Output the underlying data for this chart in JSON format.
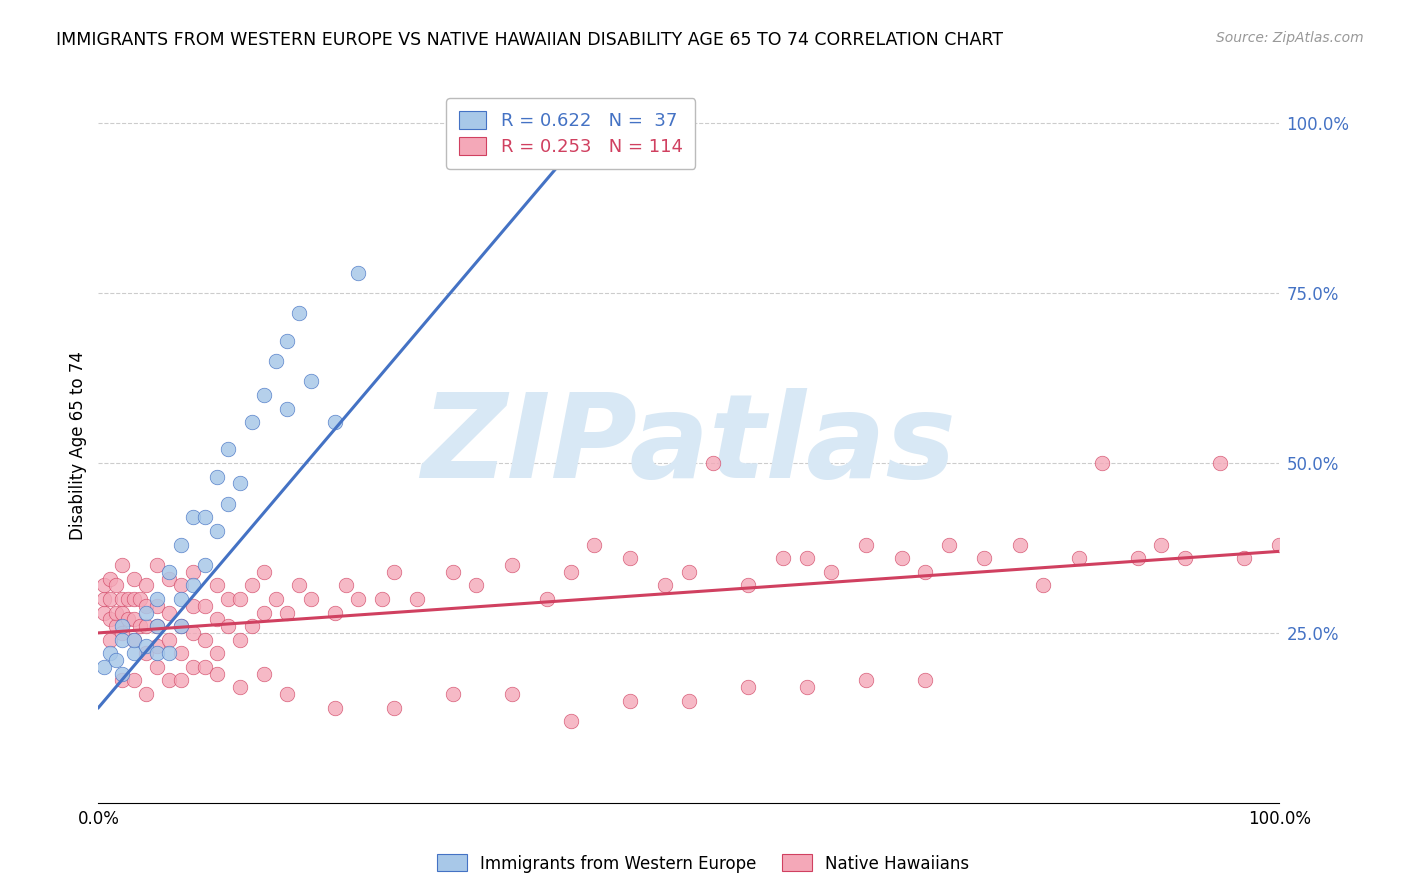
{
  "title": "IMMIGRANTS FROM WESTERN EUROPE VS NATIVE HAWAIIAN DISABILITY AGE 65 TO 74 CORRELATION CHART",
  "source": "Source: ZipAtlas.com",
  "ylabel": "Disability Age 65 to 74",
  "xlim": [
    0.0,
    1.0
  ],
  "ylim": [
    0.0,
    1.05
  ],
  "ytick_positions": [
    0.25,
    0.5,
    0.75,
    1.0
  ],
  "right_ytick_labels": [
    "25.0%",
    "50.0%",
    "75.0%",
    "100.0%"
  ],
  "blue_R": 0.622,
  "blue_N": 37,
  "pink_R": 0.253,
  "pink_N": 114,
  "blue_color": "#a8c8e8",
  "pink_color": "#f4a8b8",
  "blue_line_color": "#4472c4",
  "pink_line_color": "#d04060",
  "legend_blue_color": "#4472c4",
  "legend_pink_color": "#d04060",
  "right_axis_color": "#4472c4",
  "watermark_color": "#d8e8f5",
  "blue_scatter_x": [
    0.005,
    0.01,
    0.015,
    0.02,
    0.02,
    0.02,
    0.03,
    0.03,
    0.04,
    0.04,
    0.05,
    0.05,
    0.05,
    0.06,
    0.06,
    0.07,
    0.07,
    0.07,
    0.08,
    0.08,
    0.09,
    0.09,
    0.1,
    0.1,
    0.11,
    0.11,
    0.12,
    0.13,
    0.14,
    0.15,
    0.16,
    0.16,
    0.17,
    0.18,
    0.2,
    0.22,
    0.36
  ],
  "blue_scatter_y": [
    0.2,
    0.22,
    0.21,
    0.19,
    0.24,
    0.26,
    0.22,
    0.24,
    0.23,
    0.28,
    0.22,
    0.26,
    0.3,
    0.22,
    0.34,
    0.26,
    0.3,
    0.38,
    0.32,
    0.42,
    0.35,
    0.42,
    0.4,
    0.48,
    0.44,
    0.52,
    0.47,
    0.56,
    0.6,
    0.65,
    0.58,
    0.68,
    0.72,
    0.62,
    0.56,
    0.78,
    0.95
  ],
  "pink_scatter_x": [
    0.005,
    0.005,
    0.005,
    0.01,
    0.01,
    0.01,
    0.01,
    0.015,
    0.015,
    0.015,
    0.02,
    0.02,
    0.02,
    0.02,
    0.025,
    0.025,
    0.03,
    0.03,
    0.03,
    0.03,
    0.035,
    0.035,
    0.04,
    0.04,
    0.04,
    0.04,
    0.05,
    0.05,
    0.05,
    0.05,
    0.06,
    0.06,
    0.06,
    0.07,
    0.07,
    0.07,
    0.08,
    0.08,
    0.08,
    0.09,
    0.09,
    0.1,
    0.1,
    0.1,
    0.11,
    0.11,
    0.12,
    0.12,
    0.13,
    0.13,
    0.14,
    0.14,
    0.15,
    0.16,
    0.17,
    0.18,
    0.2,
    0.21,
    0.22,
    0.24,
    0.25,
    0.27,
    0.3,
    0.32,
    0.35,
    0.38,
    0.4,
    0.42,
    0.45,
    0.48,
    0.5,
    0.52,
    0.55,
    0.58,
    0.6,
    0.62,
    0.65,
    0.68,
    0.7,
    0.72,
    0.75,
    0.78,
    0.8,
    0.83,
    0.85,
    0.88,
    0.9,
    0.92,
    0.95,
    0.97,
    1.0,
    0.02,
    0.03,
    0.04,
    0.05,
    0.06,
    0.07,
    0.08,
    0.09,
    0.1,
    0.12,
    0.14,
    0.16,
    0.2,
    0.25,
    0.3,
    0.35,
    0.4,
    0.45,
    0.5,
    0.55,
    0.6,
    0.65,
    0.7
  ],
  "pink_scatter_y": [
    0.28,
    0.3,
    0.32,
    0.24,
    0.27,
    0.3,
    0.33,
    0.26,
    0.28,
    0.32,
    0.25,
    0.28,
    0.3,
    0.35,
    0.27,
    0.3,
    0.24,
    0.27,
    0.3,
    0.33,
    0.26,
    0.3,
    0.22,
    0.26,
    0.29,
    0.32,
    0.23,
    0.26,
    0.29,
    0.35,
    0.24,
    0.28,
    0.33,
    0.22,
    0.26,
    0.32,
    0.25,
    0.29,
    0.34,
    0.24,
    0.29,
    0.22,
    0.27,
    0.32,
    0.26,
    0.3,
    0.24,
    0.3,
    0.26,
    0.32,
    0.28,
    0.34,
    0.3,
    0.28,
    0.32,
    0.3,
    0.28,
    0.32,
    0.3,
    0.3,
    0.34,
    0.3,
    0.34,
    0.32,
    0.35,
    0.3,
    0.34,
    0.38,
    0.36,
    0.32,
    0.34,
    0.5,
    0.32,
    0.36,
    0.36,
    0.34,
    0.38,
    0.36,
    0.34,
    0.38,
    0.36,
    0.38,
    0.32,
    0.36,
    0.5,
    0.36,
    0.38,
    0.36,
    0.5,
    0.36,
    0.38,
    0.18,
    0.18,
    0.16,
    0.2,
    0.18,
    0.18,
    0.2,
    0.2,
    0.19,
    0.17,
    0.19,
    0.16,
    0.14,
    0.14,
    0.16,
    0.16,
    0.12,
    0.15,
    0.15,
    0.17,
    0.17,
    0.18,
    0.18
  ],
  "blue_line_x": [
    0.0,
    0.42
  ],
  "blue_line_y": [
    0.14,
    1.0
  ],
  "pink_line_x": [
    0.0,
    1.0
  ],
  "pink_line_y": [
    0.25,
    0.37
  ]
}
